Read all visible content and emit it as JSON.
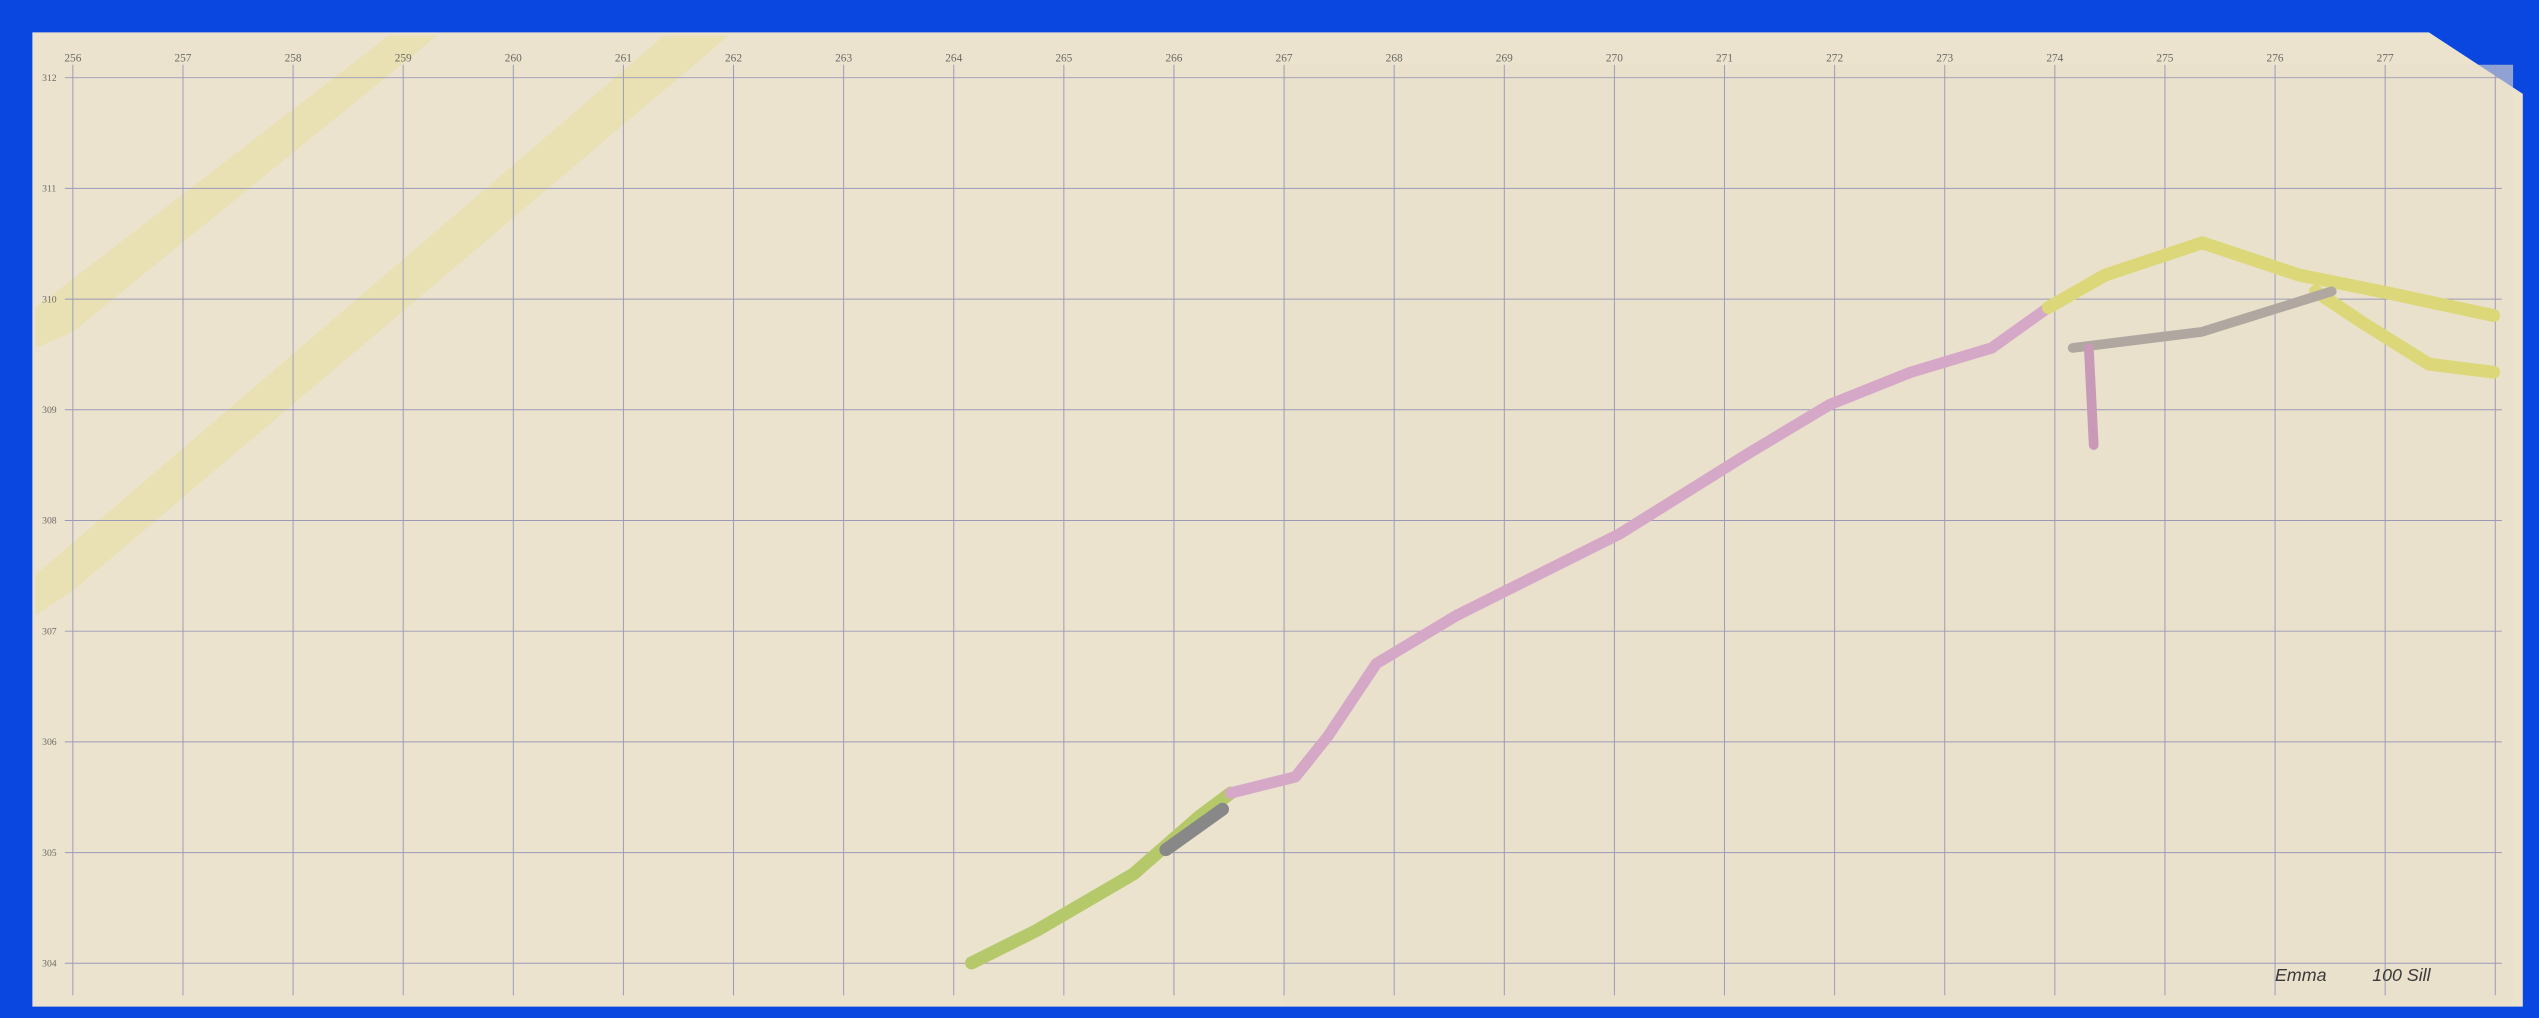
{
  "grid": {
    "top_labels": [
      "256",
      "257",
      "258",
      "259",
      "260",
      "261",
      "262",
      "263",
      "264",
      "265",
      "266",
      "267",
      "268",
      "269",
      "270",
      "271",
      "272",
      "273",
      "274",
      "275",
      "276",
      "277"
    ],
    "left_labels": [
      "312",
      "311",
      "310",
      "309",
      "308",
      "307",
      "306",
      "305",
      "304"
    ]
  },
  "caption": {
    "name": "Emma",
    "level": "100 Sill"
  }
}
